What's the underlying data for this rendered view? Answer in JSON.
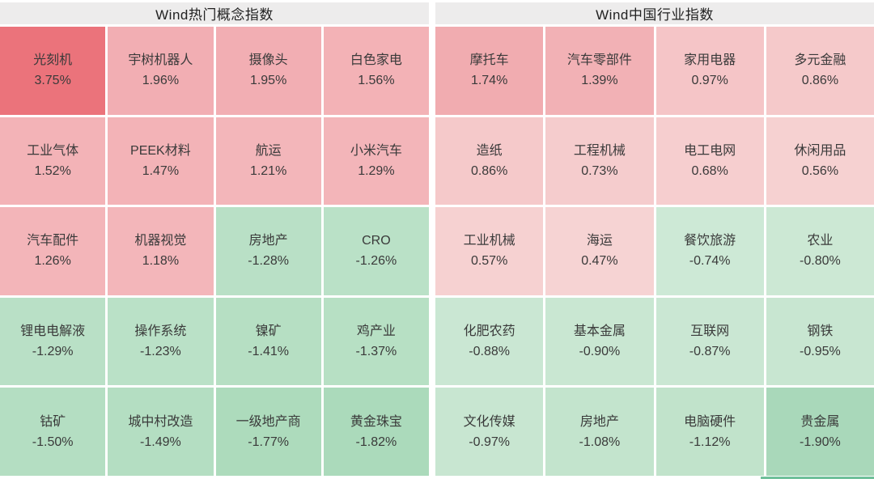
{
  "colors": {
    "page_bg": "#ffffff",
    "header_bg": "#edecec",
    "header_text": "#222222",
    "cell_text": "#3a3a3a",
    "positive_strong": "#eb737b",
    "positive_light": "#f6d3d3",
    "negative_strong": "#a9d8ba",
    "negative_light": "#cde9d6",
    "bottom_strip": "#6fc09a"
  },
  "chart_data": {
    "type": "heatmap",
    "layout": {
      "rows": 5,
      "columns_per_panel": 4,
      "legend": "none",
      "color_rule": "red = positive change, green = negative change; intensity scales with magnitude"
    },
    "panels": [
      {
        "title": "Wind热门概念指数",
        "cells": [
          {
            "name": "光刻机",
            "value": 3.75,
            "label": "3.75%",
            "color": "#eb737b"
          },
          {
            "name": "宇树机器人",
            "value": 1.96,
            "label": "1.96%",
            "color": "#f2aeb3"
          },
          {
            "name": "摄像头",
            "value": 1.95,
            "label": "1.95%",
            "color": "#f2aeb3"
          },
          {
            "name": "白色家电",
            "value": 1.56,
            "label": "1.56%",
            "color": "#f3b2b6"
          },
          {
            "name": "工业气体",
            "value": 1.52,
            "label": "1.52%",
            "color": "#f3b3b7"
          },
          {
            "name": "PEEK材料",
            "value": 1.47,
            "label": "1.47%",
            "color": "#f3b3b7"
          },
          {
            "name": "航运",
            "value": 1.21,
            "label": "1.21%",
            "color": "#f3b6ba"
          },
          {
            "name": "小米汽车",
            "value": 1.29,
            "label": "1.29%",
            "color": "#f3b5b9"
          },
          {
            "name": "汽车配件",
            "value": 1.26,
            "label": "1.26%",
            "color": "#f3b5b9"
          },
          {
            "name": "机器视觉",
            "value": 1.18,
            "label": "1.18%",
            "color": "#f3b6ba"
          },
          {
            "name": "房地产",
            "value": -1.28,
            "label": "-1.28%",
            "color": "#b9e0c6"
          },
          {
            "name": "CRO",
            "value": -1.26,
            "label": "-1.26%",
            "color": "#bae1c7"
          },
          {
            "name": "锂电电解液",
            "value": -1.29,
            "label": "-1.29%",
            "color": "#b9e0c6"
          },
          {
            "name": "操作系统",
            "value": -1.23,
            "label": "-1.23%",
            "color": "#bae1c7"
          },
          {
            "name": "镍矿",
            "value": -1.41,
            "label": "-1.41%",
            "color": "#b6dfc3"
          },
          {
            "name": "鸡产业",
            "value": -1.37,
            "label": "-1.37%",
            "color": "#b7e0c4"
          },
          {
            "name": "钴矿",
            "value": -1.5,
            "label": "-1.50%",
            "color": "#b4dec2"
          },
          {
            "name": "城中村改造",
            "value": -1.49,
            "label": "-1.49%",
            "color": "#b4dec2"
          },
          {
            "name": "一级地产商",
            "value": -1.77,
            "label": "-1.77%",
            "color": "#addbbc"
          },
          {
            "name": "黄金珠宝",
            "value": -1.82,
            "label": "-1.82%",
            "color": "#abdabb"
          }
        ]
      },
      {
        "title": "Wind中国行业指数",
        "cells": [
          {
            "name": "摩托车",
            "value": 1.74,
            "label": "1.74%",
            "color": "#f1acb0"
          },
          {
            "name": "汽车零部件",
            "value": 1.39,
            "label": "1.39%",
            "color": "#f2b1b5"
          },
          {
            "name": "家用电器",
            "value": 0.97,
            "label": "0.97%",
            "color": "#f5c5c7"
          },
          {
            "name": "多元金融",
            "value": 0.86,
            "label": "0.86%",
            "color": "#f5c9ca"
          },
          {
            "name": "造纸",
            "value": 0.86,
            "label": "0.86%",
            "color": "#f5c9ca"
          },
          {
            "name": "工程机械",
            "value": 0.73,
            "label": "0.73%",
            "color": "#f5cccd"
          },
          {
            "name": "电工电网",
            "value": 0.68,
            "label": "0.68%",
            "color": "#f6cecf"
          },
          {
            "name": "休闲用品",
            "value": 0.56,
            "label": "0.56%",
            "color": "#f6d1d1"
          },
          {
            "name": "工业机械",
            "value": 0.57,
            "label": "0.57%",
            "color": "#f6d1d1"
          },
          {
            "name": "海运",
            "value": 0.47,
            "label": "0.47%",
            "color": "#f6d3d3"
          },
          {
            "name": "餐饮旅游",
            "value": -0.74,
            "label": "-0.74%",
            "color": "#cde9d6"
          },
          {
            "name": "农业",
            "value": -0.8,
            "label": "-0.80%",
            "color": "#cce8d4"
          },
          {
            "name": "化肥农药",
            "value": -0.88,
            "label": "-0.88%",
            "color": "#cae7d3"
          },
          {
            "name": "基本金属",
            "value": -0.9,
            "label": "-0.90%",
            "color": "#c9e7d2"
          },
          {
            "name": "互联网",
            "value": -0.87,
            "label": "-0.87%",
            "color": "#cae7d3"
          },
          {
            "name": "钢铁",
            "value": -0.95,
            "label": "-0.95%",
            "color": "#c8e6d1"
          },
          {
            "name": "文化传媒",
            "value": -0.97,
            "label": "-0.97%",
            "color": "#c8e6d1"
          },
          {
            "name": "房地产",
            "value": -1.08,
            "label": "-1.08%",
            "color": "#c3e4cd"
          },
          {
            "name": "电脑硬件",
            "value": -1.12,
            "label": "-1.12%",
            "color": "#c1e3cb"
          },
          {
            "name": "贵金属",
            "value": -1.9,
            "label": "-1.90%",
            "color": "#a9d8ba"
          }
        ]
      }
    ]
  }
}
